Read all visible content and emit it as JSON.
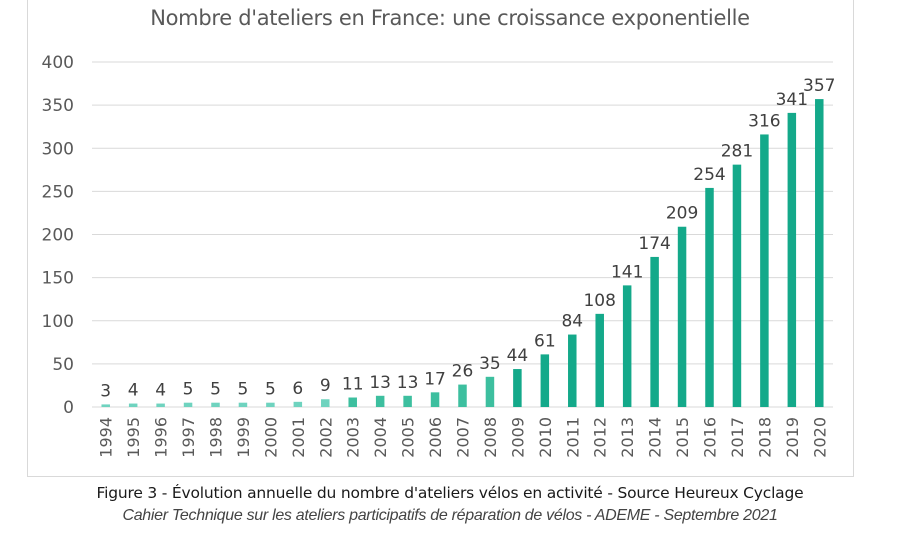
{
  "chart_data": {
    "type": "bar",
    "title": "Nombre d'ateliers en France: une croissance exponentielle",
    "xlabel": "",
    "ylabel": "",
    "ylim": [
      0,
      400
    ],
    "yticks": [
      0,
      50,
      100,
      150,
      200,
      250,
      300,
      350,
      400
    ],
    "grid": true,
    "legend": "none",
    "categories": [
      "1994",
      "1995",
      "1996",
      "1997",
      "1998",
      "1999",
      "2000",
      "2001",
      "2002",
      "2003",
      "2004",
      "2005",
      "2006",
      "2007",
      "2008",
      "2009",
      "2010",
      "2011",
      "2012",
      "2013",
      "2014",
      "2015",
      "2016",
      "2017",
      "2018",
      "2019",
      "2020"
    ],
    "values": [
      3,
      4,
      4,
      5,
      5,
      5,
      5,
      6,
      9,
      11,
      13,
      13,
      17,
      26,
      35,
      44,
      61,
      84,
      108,
      141,
      174,
      209,
      254,
      281,
      316,
      341,
      357
    ],
    "data_labels": [
      "3",
      "4",
      "4",
      "5",
      "5",
      "5",
      "5",
      "6",
      "9",
      "11",
      "13",
      "13",
      "17",
      "26",
      "35",
      "44",
      "61",
      "84",
      "108",
      "141",
      "174",
      "209",
      "254",
      "281",
      "316",
      "341",
      "357"
    ],
    "color_groups": [
      {
        "from": "1994",
        "to": "2002",
        "color": "#6fd3bf"
      },
      {
        "from": "2003",
        "to": "2008",
        "color": "#3dbf9f"
      },
      {
        "from": "2009",
        "to": "2020",
        "color": "#14a98a"
      }
    ]
  },
  "colors": {
    "grid": "#d9d9d9",
    "axis_text": "#595959",
    "label_text": "#404040"
  },
  "captions": {
    "figure": "Figure 3 - Évolution annuelle du nombre d'ateliers vélos en activité - Source Heureux Cyclage",
    "source": "Cahier Technique sur les ateliers participatifs de réparation de vélos - ADEME - Septembre 2021"
  }
}
